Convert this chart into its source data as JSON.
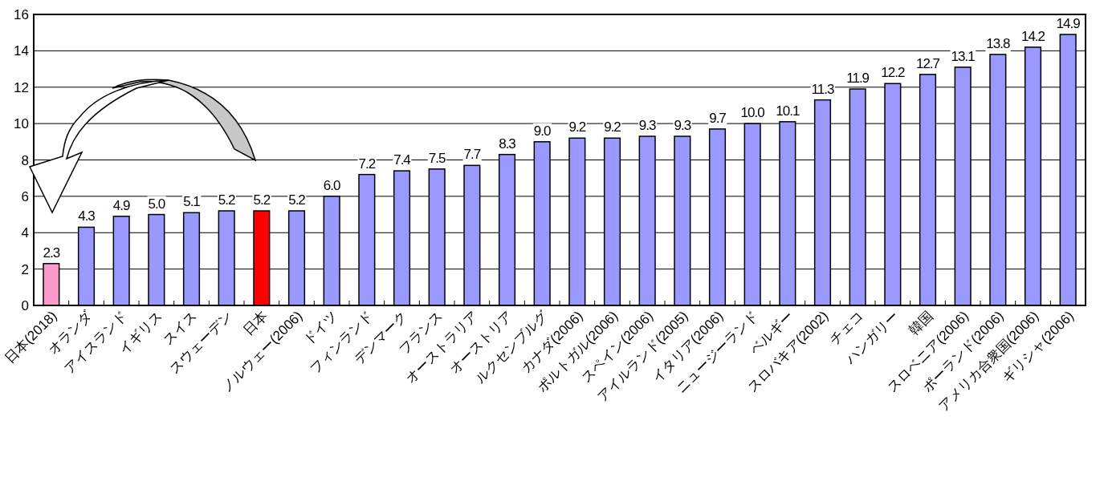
{
  "chart_data": {
    "type": "bar",
    "categories": [
      "日本(2018)",
      "オランダ",
      "アイスランド",
      "イギリス",
      "スイス",
      "スウェーデン",
      "日本",
      "ノルウェー(2006)",
      "ドイツ",
      "フィンランド",
      "デンマーク",
      "フランス",
      "オーストラリア",
      "オーストリア",
      "ルクセンブルグ",
      "カナダ(2006)",
      "ポルトガル(2006)",
      "スペイン(2006)",
      "アイルランド(2005)",
      "イタリア(2006)",
      "ニュージーランド",
      "ベルギー",
      "スロバキア(2002)",
      "チェコ",
      "ハンガリー",
      "韓国",
      "スロベニア(2006)",
      "ポーランド(2006)",
      "アメリカ合衆国(2006)",
      "ギリシャ(2006)"
    ],
    "values": [
      2.3,
      4.3,
      4.9,
      5.0,
      5.1,
      5.2,
      5.2,
      5.2,
      6.0,
      7.2,
      7.4,
      7.5,
      7.7,
      8.3,
      9.0,
      9.2,
      9.2,
      9.3,
      9.3,
      9.7,
      10.0,
      10.1,
      11.3,
      11.9,
      12.2,
      12.7,
      13.1,
      13.8,
      14.2,
      14.9
    ],
    "value_labels": [
      "2.3",
      "4.3",
      "4.9",
      "5.0",
      "5.1",
      "5.2",
      "5.2",
      "5.2",
      "6.0",
      "7.2",
      "7.4",
      "7.5",
      "7.7",
      "8.3",
      "9.0",
      "9.2",
      "9.2",
      "9.3",
      "9.3",
      "9.7",
      "10.0",
      "10.1",
      "11.3",
      "11.9",
      "12.2",
      "12.7",
      "13.1",
      "13.8",
      "14.2",
      "14.9"
    ],
    "colors": [
      "#ff99cc",
      "#9999ff",
      "#9999ff",
      "#9999ff",
      "#9999ff",
      "#9999ff",
      "#ff0000",
      "#9999ff",
      "#9999ff",
      "#9999ff",
      "#9999ff",
      "#9999ff",
      "#9999ff",
      "#9999ff",
      "#9999ff",
      "#9999ff",
      "#9999ff",
      "#9999ff",
      "#9999ff",
      "#9999ff",
      "#9999ff",
      "#9999ff",
      "#9999ff",
      "#9999ff",
      "#9999ff",
      "#9999ff",
      "#9999ff",
      "#9999ff",
      "#9999ff",
      "#9999ff"
    ],
    "ylim": [
      0,
      16
    ],
    "yticks": [
      0,
      2,
      4,
      6,
      8,
      10,
      12,
      14,
      16
    ],
    "grid": "y"
  }
}
